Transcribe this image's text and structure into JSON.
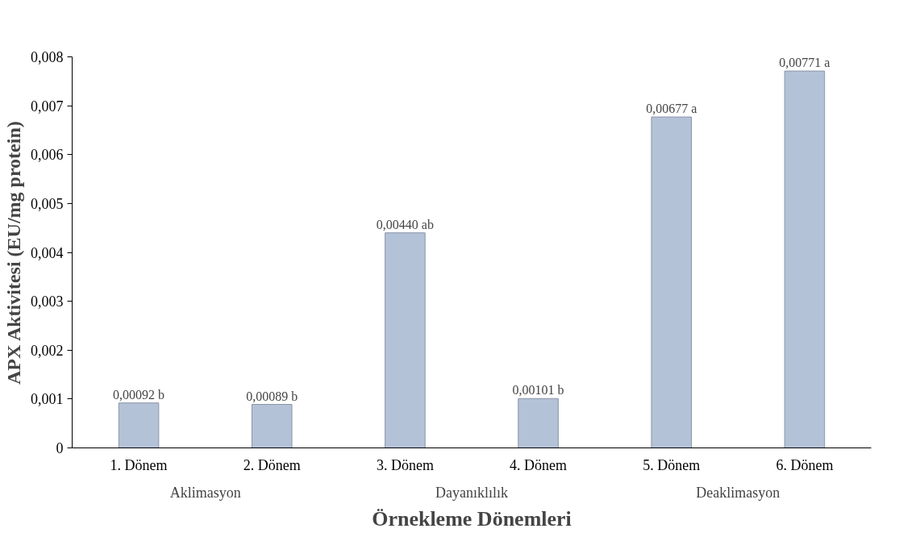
{
  "chart_data": {
    "type": "bar",
    "xlabel": "Örnekleme Dönemleri",
    "ylabel": "APX Aktivitesi (EU/mg protein)",
    "categories": [
      "1. Dönem",
      "2. Dönem",
      "3. Dönem",
      "4. Dönem",
      "5. Dönem",
      "6. Dönem"
    ],
    "values": [
      0.00092,
      0.00089,
      0.0044,
      0.00101,
      0.00677,
      0.00771
    ],
    "value_labels": [
      "0,00092 b",
      "0,00089 b",
      "0,00440 ab",
      "0,00101 b",
      "0,00677 a",
      "0,00771 a"
    ],
    "color": "#b4c2d8",
    "ylim": [
      0,
      0.008
    ],
    "yticks": [
      {
        "value": 0,
        "label": "0"
      },
      {
        "value": 0.001,
        "label": "0,001"
      },
      {
        "value": 0.002,
        "label": "0,002"
      },
      {
        "value": 0.003,
        "label": "0,003"
      },
      {
        "value": 0.004,
        "label": "0,004"
      },
      {
        "value": 0.005,
        "label": "0,005"
      },
      {
        "value": 0.006,
        "label": "0,006"
      },
      {
        "value": 0.007,
        "label": "0,007"
      },
      {
        "value": 0.008,
        "label": "0,008"
      }
    ],
    "annotations": [
      "Aklimasyon",
      "Dayanıklılık",
      "Deaklimasyon"
    ],
    "grid": false
  }
}
